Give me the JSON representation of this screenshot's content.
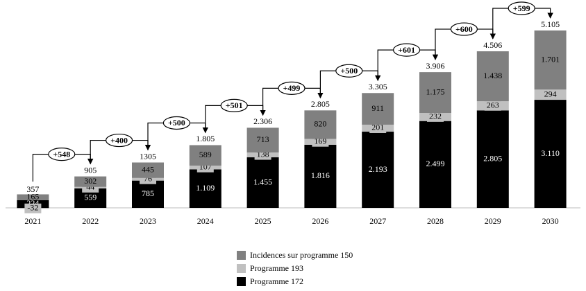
{
  "chart_data": {
    "type": "stacked-bar",
    "categories": [
      "2021",
      "2022",
      "2023",
      "2024",
      "2025",
      "2026",
      "2027",
      "2028",
      "2029",
      "2030"
    ],
    "series": [
      {
        "name": "Programme 172",
        "color": "#000000",
        "values": [
          224,
          559,
          785,
          1109,
          1455,
          1816,
          2193,
          2499,
          2805,
          3110
        ],
        "value_labels": [
          "224",
          "559",
          "785",
          "1.109",
          "1.455",
          "1.816",
          "2.193",
          "2.499",
          "2.805",
          "3.110"
        ]
      },
      {
        "name": "Programme 193",
        "color": "#c0c0c0",
        "values": [
          -32,
          44,
          76,
          107,
          138,
          169,
          201,
          232,
          263,
          294
        ]
      },
      {
        "name": "Incidences sur programme 150",
        "color": "#808080",
        "values": [
          165,
          302,
          445,
          589,
          713,
          820,
          911,
          1175,
          1438,
          1701
        ],
        "value_labels": [
          "165",
          "302",
          "445",
          "589",
          "713",
          "820",
          "911",
          "1.175",
          "1.438",
          "1.701"
        ]
      }
    ],
    "totals": {
      "values": [
        357,
        905,
        1305,
        1805,
        2306,
        2805,
        3305,
        3906,
        4506,
        5105
      ],
      "value_labels": [
        "357",
        "905",
        "1305",
        "1.805",
        "2.306",
        "2.805",
        "3.305",
        "3.906",
        "4.506",
        "5.105"
      ]
    },
    "annotations": [
      "+548",
      "+400",
      "+500",
      "+501",
      "+499",
      "+500",
      "+601",
      "+600",
      "+599"
    ],
    "legend": "bottom"
  }
}
